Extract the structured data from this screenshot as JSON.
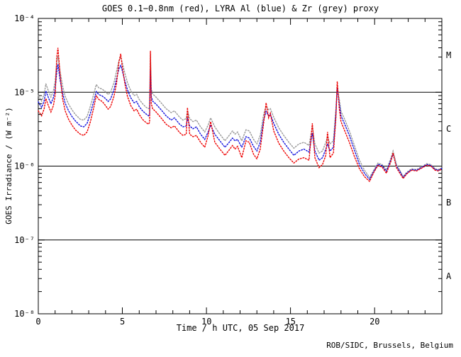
{
  "chart_data": {
    "type": "line",
    "title": "GOES 0.1−0.8nm (red), LYRA Al (blue) & Zr (grey) proxy",
    "xlabel": "Time / h UTC, 05 Sep 2017",
    "ylabel": "GOES Irradiance / (W m⁻²)",
    "credit": "ROB/SIDC, Brussels, Belgium",
    "xlim": [
      0,
      24
    ],
    "ylim": [
      1e-08,
      0.0001
    ],
    "y_scale": "log",
    "grid": false,
    "x_ticks": [
      0,
      5,
      10,
      15,
      20
    ],
    "x_tick_labels": [
      "0",
      "5",
      "10",
      "15",
      "20"
    ],
    "x_minor_tick_step_hours": 1,
    "y_tick_values": [
      0.0001,
      1e-05,
      1e-06,
      1e-07,
      1e-08
    ],
    "y_tick_labels": [
      "10⁻⁴",
      "10⁻⁵",
      "10⁻⁶",
      "10⁻⁷",
      "10⁻⁸"
    ],
    "flare_class_labels": [
      "M",
      "C",
      "B",
      "A"
    ],
    "class_boundary_lines_wm2": [
      1e-05,
      1e-06,
      1e-07
    ],
    "frame_color": "#000000",
    "t_hours": [
      0,
      0.2,
      0.35,
      0.45,
      0.6,
      0.75,
      0.9,
      1.0,
      1.1,
      1.17,
      1.3,
      1.45,
      1.6,
      1.8,
      2.0,
      2.2,
      2.5,
      2.7,
      2.9,
      3.1,
      3.3,
      3.45,
      3.6,
      3.8,
      4.0,
      4.15,
      4.3,
      4.5,
      4.65,
      4.8,
      4.9,
      5.0,
      5.15,
      5.3,
      5.5,
      5.7,
      5.85,
      6.0,
      6.2,
      6.4,
      6.55,
      6.62,
      6.67,
      6.72,
      6.8,
      7.0,
      7.3,
      7.6,
      7.9,
      8.1,
      8.4,
      8.6,
      8.8,
      8.87,
      9.0,
      9.2,
      9.4,
      9.65,
      9.9,
      10.1,
      10.25,
      10.5,
      10.8,
      11.1,
      11.35,
      11.55,
      11.7,
      11.85,
      12.1,
      12.35,
      12.55,
      12.8,
      13.0,
      13.2,
      13.4,
      13.55,
      13.7,
      13.8,
      14.0,
      14.3,
      14.6,
      14.9,
      15.2,
      15.5,
      15.8,
      16.1,
      16.3,
      16.45,
      16.7,
      16.9,
      17.1,
      17.2,
      17.35,
      17.55,
      17.7,
      17.78,
      17.9,
      18.0,
      18.2,
      18.5,
      18.8,
      19.1,
      19.4,
      19.7,
      19.95,
      20.2,
      20.45,
      20.7,
      20.95,
      21.1,
      21.3,
      21.5,
      21.7,
      21.9,
      22.2,
      22.5,
      22.8,
      23.1,
      23.35,
      23.6,
      23.8,
      24.0
    ],
    "series": [
      {
        "name": "LYRA Zr proxy",
        "color": "#999999",
        "values": [
          9e-06,
          7.6e-06,
          9.5e-06,
          1.3e-05,
          1.05e-05,
          8.6e-06,
          1.05e-05,
          1.4e-05,
          2.6e-05,
          3.1e-05,
          1.9e-05,
          1.2e-05,
          8.8e-06,
          6.9e-06,
          5.8e-06,
          5e-06,
          4.3e-06,
          4.2e-06,
          4.7e-06,
          6.5e-06,
          9.5e-06,
          1.27e-05,
          1.15e-05,
          1.1e-05,
          1.02e-05,
          9.3e-06,
          1e-05,
          1.35e-05,
          1.9e-05,
          2.7e-05,
          3e-05,
          2.5e-05,
          1.8e-05,
          1.35e-05,
          1.05e-05,
          9e-06,
          9.4e-06,
          8e-06,
          7e-06,
          6.3e-06,
          6e-06,
          6.2e-06,
          3.3e-05,
          1.1e-05,
          9.5e-06,
          8.6e-06,
          7.2e-06,
          6e-06,
          5.3e-06,
          5.6e-06,
          4.6e-06,
          4.2e-06,
          4.4e-06,
          5.6e-06,
          4.4e-06,
          4e-06,
          4.2e-06,
          3.4e-06,
          2.9e-06,
          3.6e-06,
          4.5e-06,
          3.4e-06,
          2.7e-06,
          2.2e-06,
          2.6e-06,
          3e-06,
          2.7e-06,
          2.9e-06,
          2.2e-06,
          3.1e-06,
          3e-06,
          2.3e-06,
          2e-06,
          2.6e-06,
          5e-06,
          6.5e-06,
          5.8e-06,
          6e-06,
          4.6e-06,
          3.3e-06,
          2.6e-06,
          2.1e-06,
          1.75e-06,
          2e-06,
          2.1e-06,
          1.9e-06,
          3.4e-06,
          2e-06,
          1.5e-06,
          1.6e-06,
          2.1e-06,
          2.5e-06,
          2e-06,
          2.2e-06,
          6e-06,
          1.2e-05,
          8e-06,
          5.5e-06,
          4.4e-06,
          3e-06,
          1.9e-06,
          1.2e-06,
          8.8e-07,
          7e-07,
          8.8e-07,
          1.1e-06,
          1.05e-06,
          8.8e-07,
          1.25e-06,
          1.6e-06,
          1.05e-06,
          8.8e-07,
          7.2e-07,
          8.2e-07,
          9.2e-07,
          9e-07,
          9.8e-07,
          1.08e-06,
          1.05e-06,
          9.2e-07,
          9e-07,
          9.5e-07
        ]
      },
      {
        "name": "LYRA Al proxy",
        "color": "#1111dd",
        "values": [
          7.4e-06,
          6.2e-06,
          7.7e-06,
          1.04e-05,
          8.5e-06,
          7e-06,
          8.5e-06,
          1.1e-05,
          1.9e-05,
          2.4e-05,
          1.45e-05,
          9.6e-06,
          7.1e-06,
          5.6e-06,
          4.7e-06,
          4.1e-06,
          3.5e-06,
          3.4e-06,
          3.8e-06,
          5.2e-06,
          7.6e-06,
          1.02e-05,
          9.3e-06,
          8.9e-06,
          8.2e-06,
          7.5e-06,
          8.1e-06,
          1.08e-05,
          1.5e-05,
          2.1e-05,
          2.3e-05,
          1.95e-05,
          1.42e-05,
          1.08e-05,
          8.4e-06,
          7.2e-06,
          7.5e-06,
          6.4e-06,
          5.6e-06,
          5.1e-06,
          4.8e-06,
          5e-06,
          2e-05,
          8.8e-06,
          7.6e-06,
          6.9e-06,
          5.8e-06,
          4.8e-06,
          4.2e-06,
          4.5e-06,
          3.7e-06,
          3.4e-06,
          3.5e-06,
          4.5e-06,
          3.5e-06,
          3.2e-06,
          3.4e-06,
          2.7e-06,
          2.3e-06,
          2.9e-06,
          3.6e-06,
          2.7e-06,
          2.2e-06,
          1.8e-06,
          2.1e-06,
          2.4e-06,
          2.2e-06,
          2.3e-06,
          1.8e-06,
          2.5e-06,
          2.4e-06,
          1.85e-06,
          1.6e-06,
          2.1e-06,
          4.2e-06,
          5.5e-06,
          4.8e-06,
          5e-06,
          3.8e-06,
          2.7e-06,
          2.1e-06,
          1.7e-06,
          1.4e-06,
          1.6e-06,
          1.7e-06,
          1.55e-06,
          2.8e-06,
          1.6e-06,
          1.2e-06,
          1.3e-06,
          1.7e-06,
          2e-06,
          1.6e-06,
          1.8e-06,
          5e-06,
          1.15e-05,
          7e-06,
          4.8e-06,
          3.8e-06,
          2.6e-06,
          1.65e-06,
          1.05e-06,
          8e-07,
          6.6e-07,
          8.5e-07,
          1.06e-06,
          1.01e-06,
          8.5e-07,
          1.18e-06,
          1.45e-06,
          1e-06,
          8.5e-07,
          7e-07,
          8e-07,
          9e-07,
          8.8e-07,
          9.6e-07,
          1.05e-06,
          1.02e-06,
          9e-07,
          8.8e-07,
          9.3e-07
        ]
      },
      {
        "name": "GOES 0.1-0.8nm",
        "color": "#ee0000",
        "values": [
          5.6e-06,
          4.8e-06,
          6e-06,
          8.2e-06,
          6.6e-06,
          5.4e-06,
          6.6e-06,
          9e-06,
          3e-05,
          4e-05,
          1.7e-05,
          8e-06,
          5.6e-06,
          4.3e-06,
          3.6e-06,
          3.1e-06,
          2.7e-06,
          2.6e-06,
          2.9e-06,
          4e-06,
          6.2e-06,
          9e-06,
          8e-06,
          7.5e-06,
          6.6e-06,
          5.9e-06,
          6.4e-06,
          8.8e-06,
          1.3e-05,
          2.6e-05,
          3.3e-05,
          2.2e-05,
          1.3e-05,
          8.8e-06,
          6.6e-06,
          5.6e-06,
          5.9e-06,
          5e-06,
          4.3e-06,
          3.9e-06,
          3.7e-06,
          3.9e-06,
          3.6e-05,
          7e-06,
          6e-06,
          5.4e-06,
          4.5e-06,
          3.7e-06,
          3.3e-06,
          3.5e-06,
          2.85e-06,
          2.6e-06,
          2.7e-06,
          6.2e-06,
          2.7e-06,
          2.5e-06,
          2.6e-06,
          2.1e-06,
          1.8e-06,
          2.6e-06,
          4e-06,
          2.1e-06,
          1.7e-06,
          1.4e-06,
          1.65e-06,
          1.9e-06,
          1.7e-06,
          1.85e-06,
          1.3e-06,
          2.2e-06,
          2.1e-06,
          1.45e-06,
          1.25e-06,
          1.7e-06,
          3.8e-06,
          7.2e-06,
          4.5e-06,
          5.2e-06,
          3e-06,
          2.05e-06,
          1.6e-06,
          1.3e-06,
          1.1e-06,
          1.25e-06,
          1.3e-06,
          1.2e-06,
          3.8e-06,
          1.3e-06,
          9.5e-07,
          1.05e-06,
          1.4e-06,
          2.9e-06,
          1.3e-06,
          1.5e-06,
          4.5e-06,
          1.4e-05,
          6e-06,
          4e-06,
          3.1e-06,
          2.1e-06,
          1.35e-06,
          9.2e-07,
          7.2e-07,
          6.2e-07,
          8.2e-07,
          1.02e-06,
          9.7e-07,
          8e-07,
          1.12e-06,
          1.5e-06,
          9.5e-07,
          8e-07,
          6.8e-07,
          7.8e-07,
          8.8e-07,
          8.6e-07,
          9.4e-07,
          1.03e-06,
          1e-06,
          8.8e-07,
          8.6e-07,
          9.2e-07
        ]
      }
    ]
  }
}
